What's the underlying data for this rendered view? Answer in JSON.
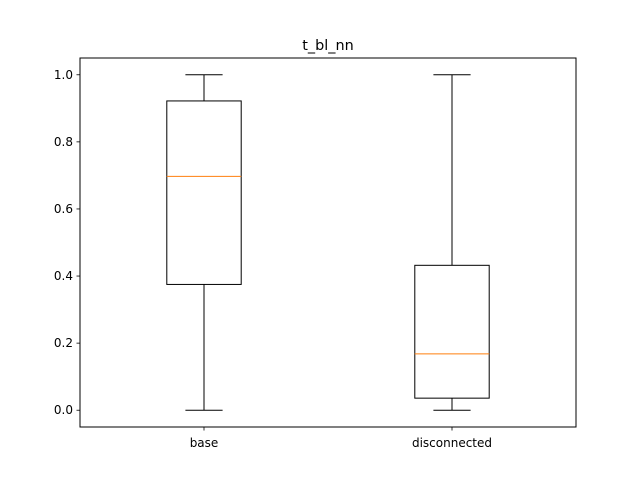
{
  "chart_data": {
    "type": "box",
    "title": "t_bl_nn",
    "xlabel": "",
    "ylabel": "",
    "categories": [
      "base",
      "disconnected"
    ],
    "ylim": [
      -0.05,
      1.05
    ],
    "yticks": [
      0.0,
      0.2,
      0.4,
      0.6,
      0.8,
      1.0
    ],
    "ytick_labels": [
      "0.0",
      "0.2",
      "0.4",
      "0.6",
      "0.8",
      "1.0"
    ],
    "boxes": [
      {
        "name": "base",
        "whisker_low": 0.0,
        "q1": 0.375,
        "median": 0.697,
        "q3": 0.922,
        "whisker_high": 1.0
      },
      {
        "name": "disconnected",
        "whisker_low": 0.0,
        "q1": 0.036,
        "median": 0.168,
        "q3": 0.432,
        "whisker_high": 1.0
      }
    ],
    "grid": false,
    "colors": {
      "box": "#000000",
      "median": "#ff7f0e",
      "axes": "#000000"
    }
  }
}
